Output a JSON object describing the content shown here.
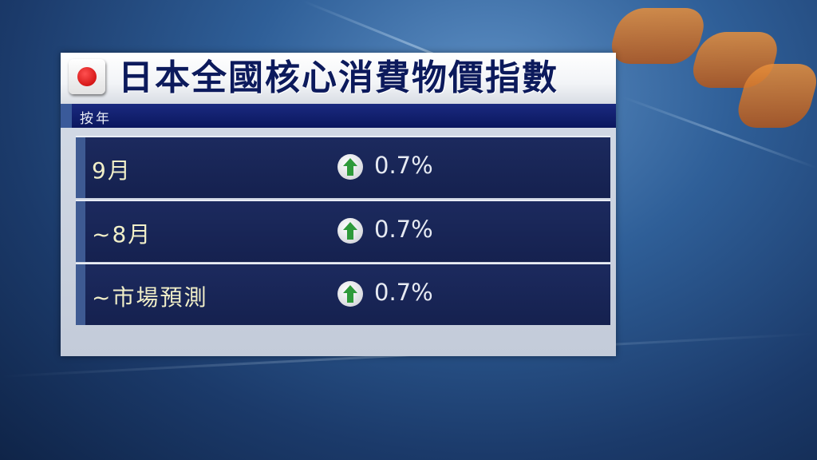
{
  "graphic": {
    "title": "日本全國核心消費物價指數",
    "subtitle": "按年",
    "flag_icon": "japan-flag-icon",
    "colors": {
      "title_text": "#0c1a5c",
      "row_bg": "#1c2a5e",
      "up_arrow": "#2e9a3a",
      "label_text": "#f1efc8"
    },
    "rows": [
      {
        "label": "9月",
        "direction": "up",
        "value": "0.7%"
      },
      {
        "label": "~8月",
        "direction": "up",
        "value": "0.7%"
      },
      {
        "label": "~市場預測",
        "direction": "up",
        "value": "0.7%"
      }
    ]
  }
}
